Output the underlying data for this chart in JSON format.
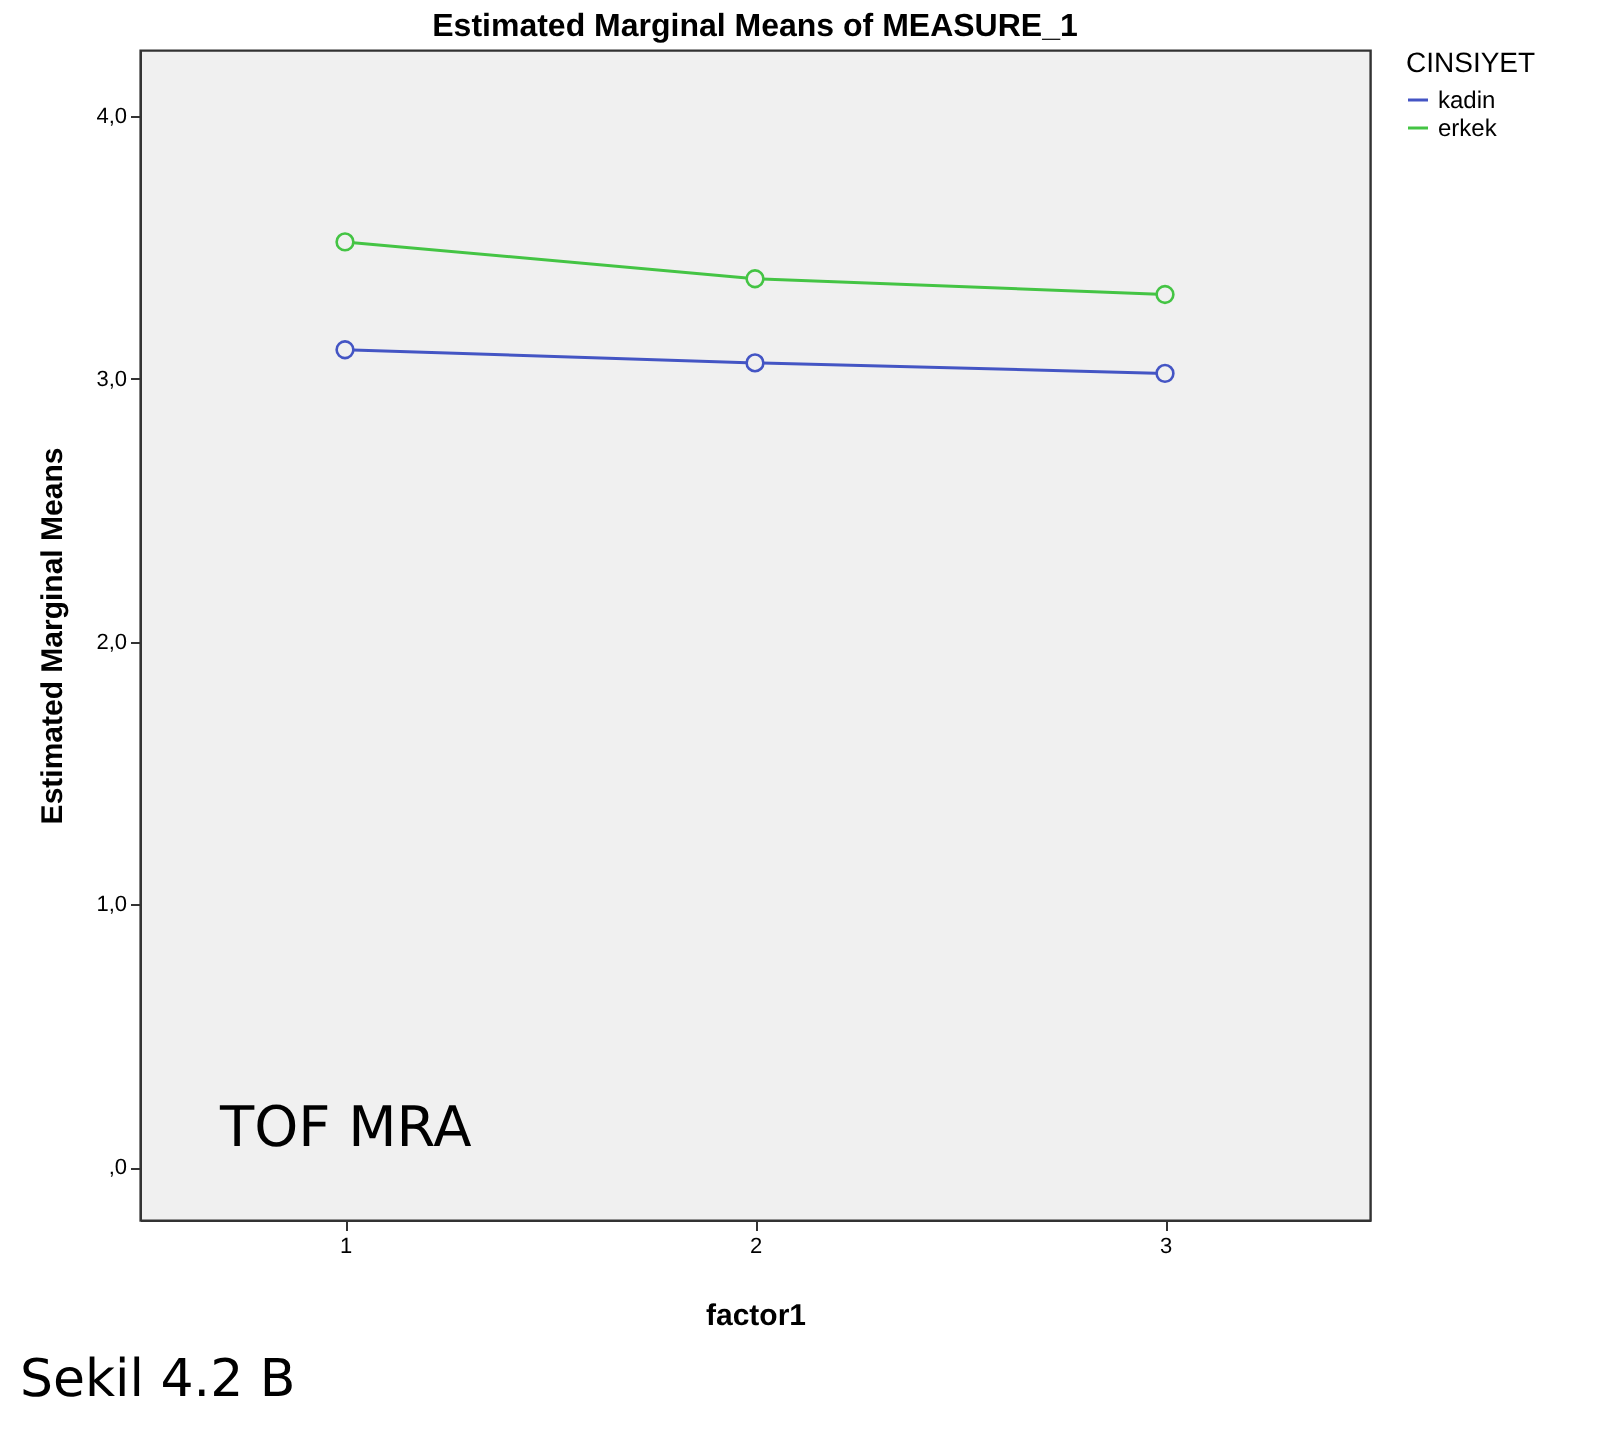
{
  "chart_data": {
    "type": "line",
    "title": "Estimated Marginal Means of MEASURE_1",
    "xlabel": "factor1",
    "ylabel": "Estimated Marginal Means",
    "legend_title": "CINSIYET",
    "categories": [
      "1",
      "2",
      "3"
    ],
    "series": [
      {
        "name": "kadin",
        "color": "#4455c4",
        "values": [
          3.11,
          3.06,
          3.02
        ]
      },
      {
        "name": "erkek",
        "color": "#44c444",
        "values": [
          3.52,
          3.38,
          3.32
        ]
      }
    ],
    "ylim": [
      -0.2,
      4.25
    ],
    "yticks": [
      {
        "value": 0,
        "label": ",0"
      },
      {
        "value": 1,
        "label": "1,0"
      },
      {
        "value": 2,
        "label": "2,0"
      },
      {
        "value": 3,
        "label": "3,0"
      },
      {
        "value": 4,
        "label": "4,0"
      }
    ],
    "grid": false,
    "legend": "top right",
    "marker": "circle",
    "line_style": "solid",
    "annotations": [
      "TOF MRA",
      "Sekil 4.2 B"
    ]
  }
}
